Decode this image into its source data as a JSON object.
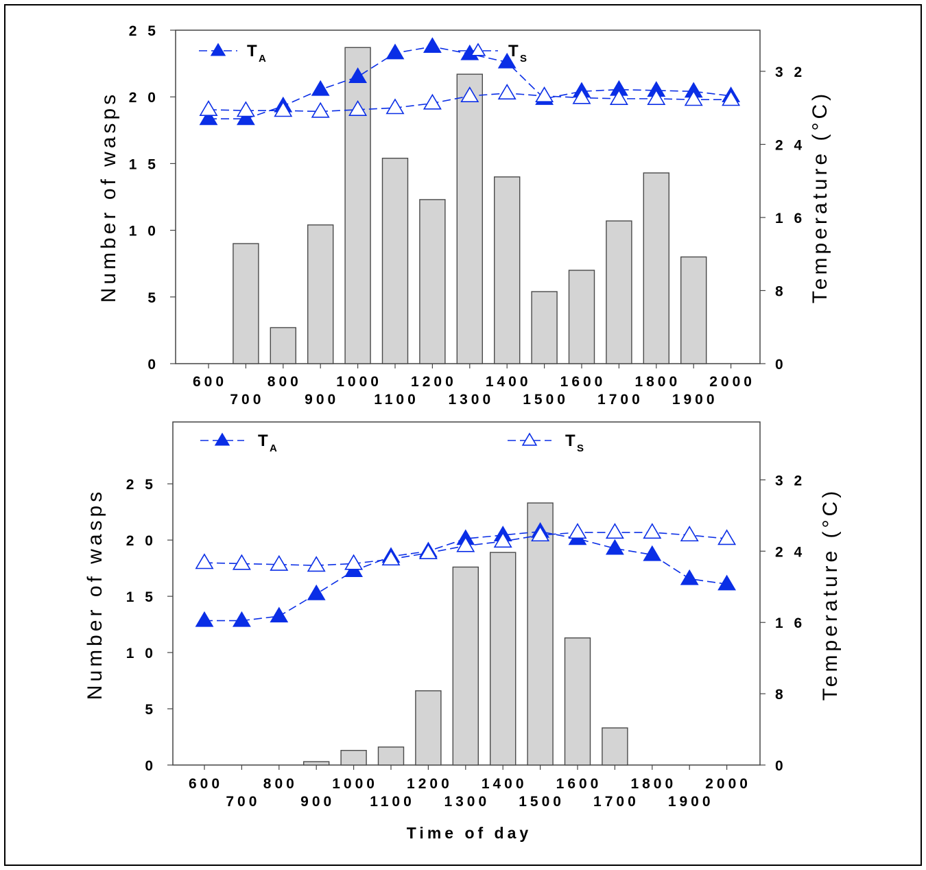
{
  "chart_data": [
    {
      "type": "bar",
      "x": [
        600,
        700,
        800,
        900,
        1000,
        1100,
        1200,
        1300,
        1400,
        1500,
        1600,
        1700,
        1800,
        1900,
        2000
      ],
      "x_tick_labels_upper": [
        "600",
        "800",
        "1000",
        "1200",
        "1400",
        "1600",
        "1800",
        "2000"
      ],
      "x_tick_labels_lower": [
        "700",
        "900",
        "1100",
        "1300",
        "1500",
        "1700",
        "1900"
      ],
      "ylabel": "Number of wasps",
      "ylim": [
        0,
        25
      ],
      "yticks": [
        "0",
        "5",
        "1 0",
        "1 5",
        "2 0",
        "2 5"
      ],
      "y_tick_values": [
        0,
        5,
        10,
        15,
        20,
        25
      ],
      "y2label": "Temperature  (°C)",
      "y2lim": [
        0,
        36.5
      ],
      "y2ticks": [
        "0",
        "8",
        "1 6",
        "2 4",
        "3 2"
      ],
      "y2_tick_values": [
        0,
        8,
        16,
        24,
        32
      ],
      "bars": [
        0,
        9.0,
        2.7,
        10.4,
        23.7,
        15.4,
        12.3,
        21.7,
        14.0,
        5.4,
        7.0,
        10.7,
        14.3,
        8.0,
        0
      ],
      "series": [
        {
          "name": "T",
          "sub": "A",
          "marker": "filled-triangle",
          "axis": "right",
          "values": [
            26.8,
            26.8,
            28.2,
            30.0,
            31.4,
            34.0,
            34.7,
            33.9,
            33.0,
            29.0,
            29.8,
            30.0,
            29.9,
            29.8,
            29.3
          ]
        },
        {
          "name": "T",
          "sub": "S",
          "marker": "open-triangle",
          "axis": "right",
          "values": [
            27.8,
            27.7,
            27.7,
            27.6,
            27.8,
            28.0,
            28.5,
            29.3,
            29.6,
            29.3,
            29.1,
            29.0,
            29.0,
            28.9,
            28.9
          ]
        }
      ],
      "grid": false,
      "legend": "top"
    },
    {
      "type": "bar",
      "x": [
        600,
        700,
        800,
        900,
        1000,
        1100,
        1200,
        1300,
        1400,
        1500,
        1600,
        1700,
        1800,
        1900,
        2000
      ],
      "x_tick_labels_upper": [
        "600",
        "800",
        "1000",
        "1200",
        "1400",
        "1600",
        "1800",
        "2000"
      ],
      "x_tick_labels_lower": [
        "700",
        "900",
        "1100",
        "1300",
        "1500",
        "1700",
        "1900"
      ],
      "xlabel": "Time  of  day",
      "ylabel": "Number of wasps",
      "ylim": [
        0,
        30.5
      ],
      "yticks": [
        "0",
        "5",
        "1 0",
        "1 5",
        "2 0",
        "2 5"
      ],
      "y_tick_values": [
        0,
        5,
        10,
        15,
        20,
        25
      ],
      "y2label": "Temperature  (°C)",
      "y2lim": [
        0,
        38.5
      ],
      "y2ticks": [
        "0",
        "8",
        "1 6",
        "2 4",
        "3 2"
      ],
      "y2_tick_values": [
        0,
        8,
        16,
        24,
        32
      ],
      "bars": [
        0,
        0,
        0,
        0.3,
        1.3,
        1.6,
        6.6,
        17.6,
        18.9,
        23.3,
        11.3,
        3.3,
        0,
        0,
        0
      ],
      "series": [
        {
          "name": "T",
          "sub": "A",
          "marker": "filled-triangle",
          "axis": "right",
          "values": [
            16.2,
            16.2,
            16.7,
            19.2,
            21.8,
            23.4,
            24.0,
            25.4,
            25.8,
            26.2,
            25.4,
            24.3,
            23.6,
            20.9,
            20.3
          ]
        },
        {
          "name": "T",
          "sub": "S",
          "marker": "open-triangle",
          "axis": "right",
          "values": [
            22.7,
            22.6,
            22.5,
            22.4,
            22.6,
            23.1,
            23.8,
            24.6,
            25.1,
            25.8,
            26.1,
            26.1,
            26.1,
            25.8,
            25.4
          ]
        }
      ],
      "grid": false,
      "legend": "top"
    }
  ]
}
